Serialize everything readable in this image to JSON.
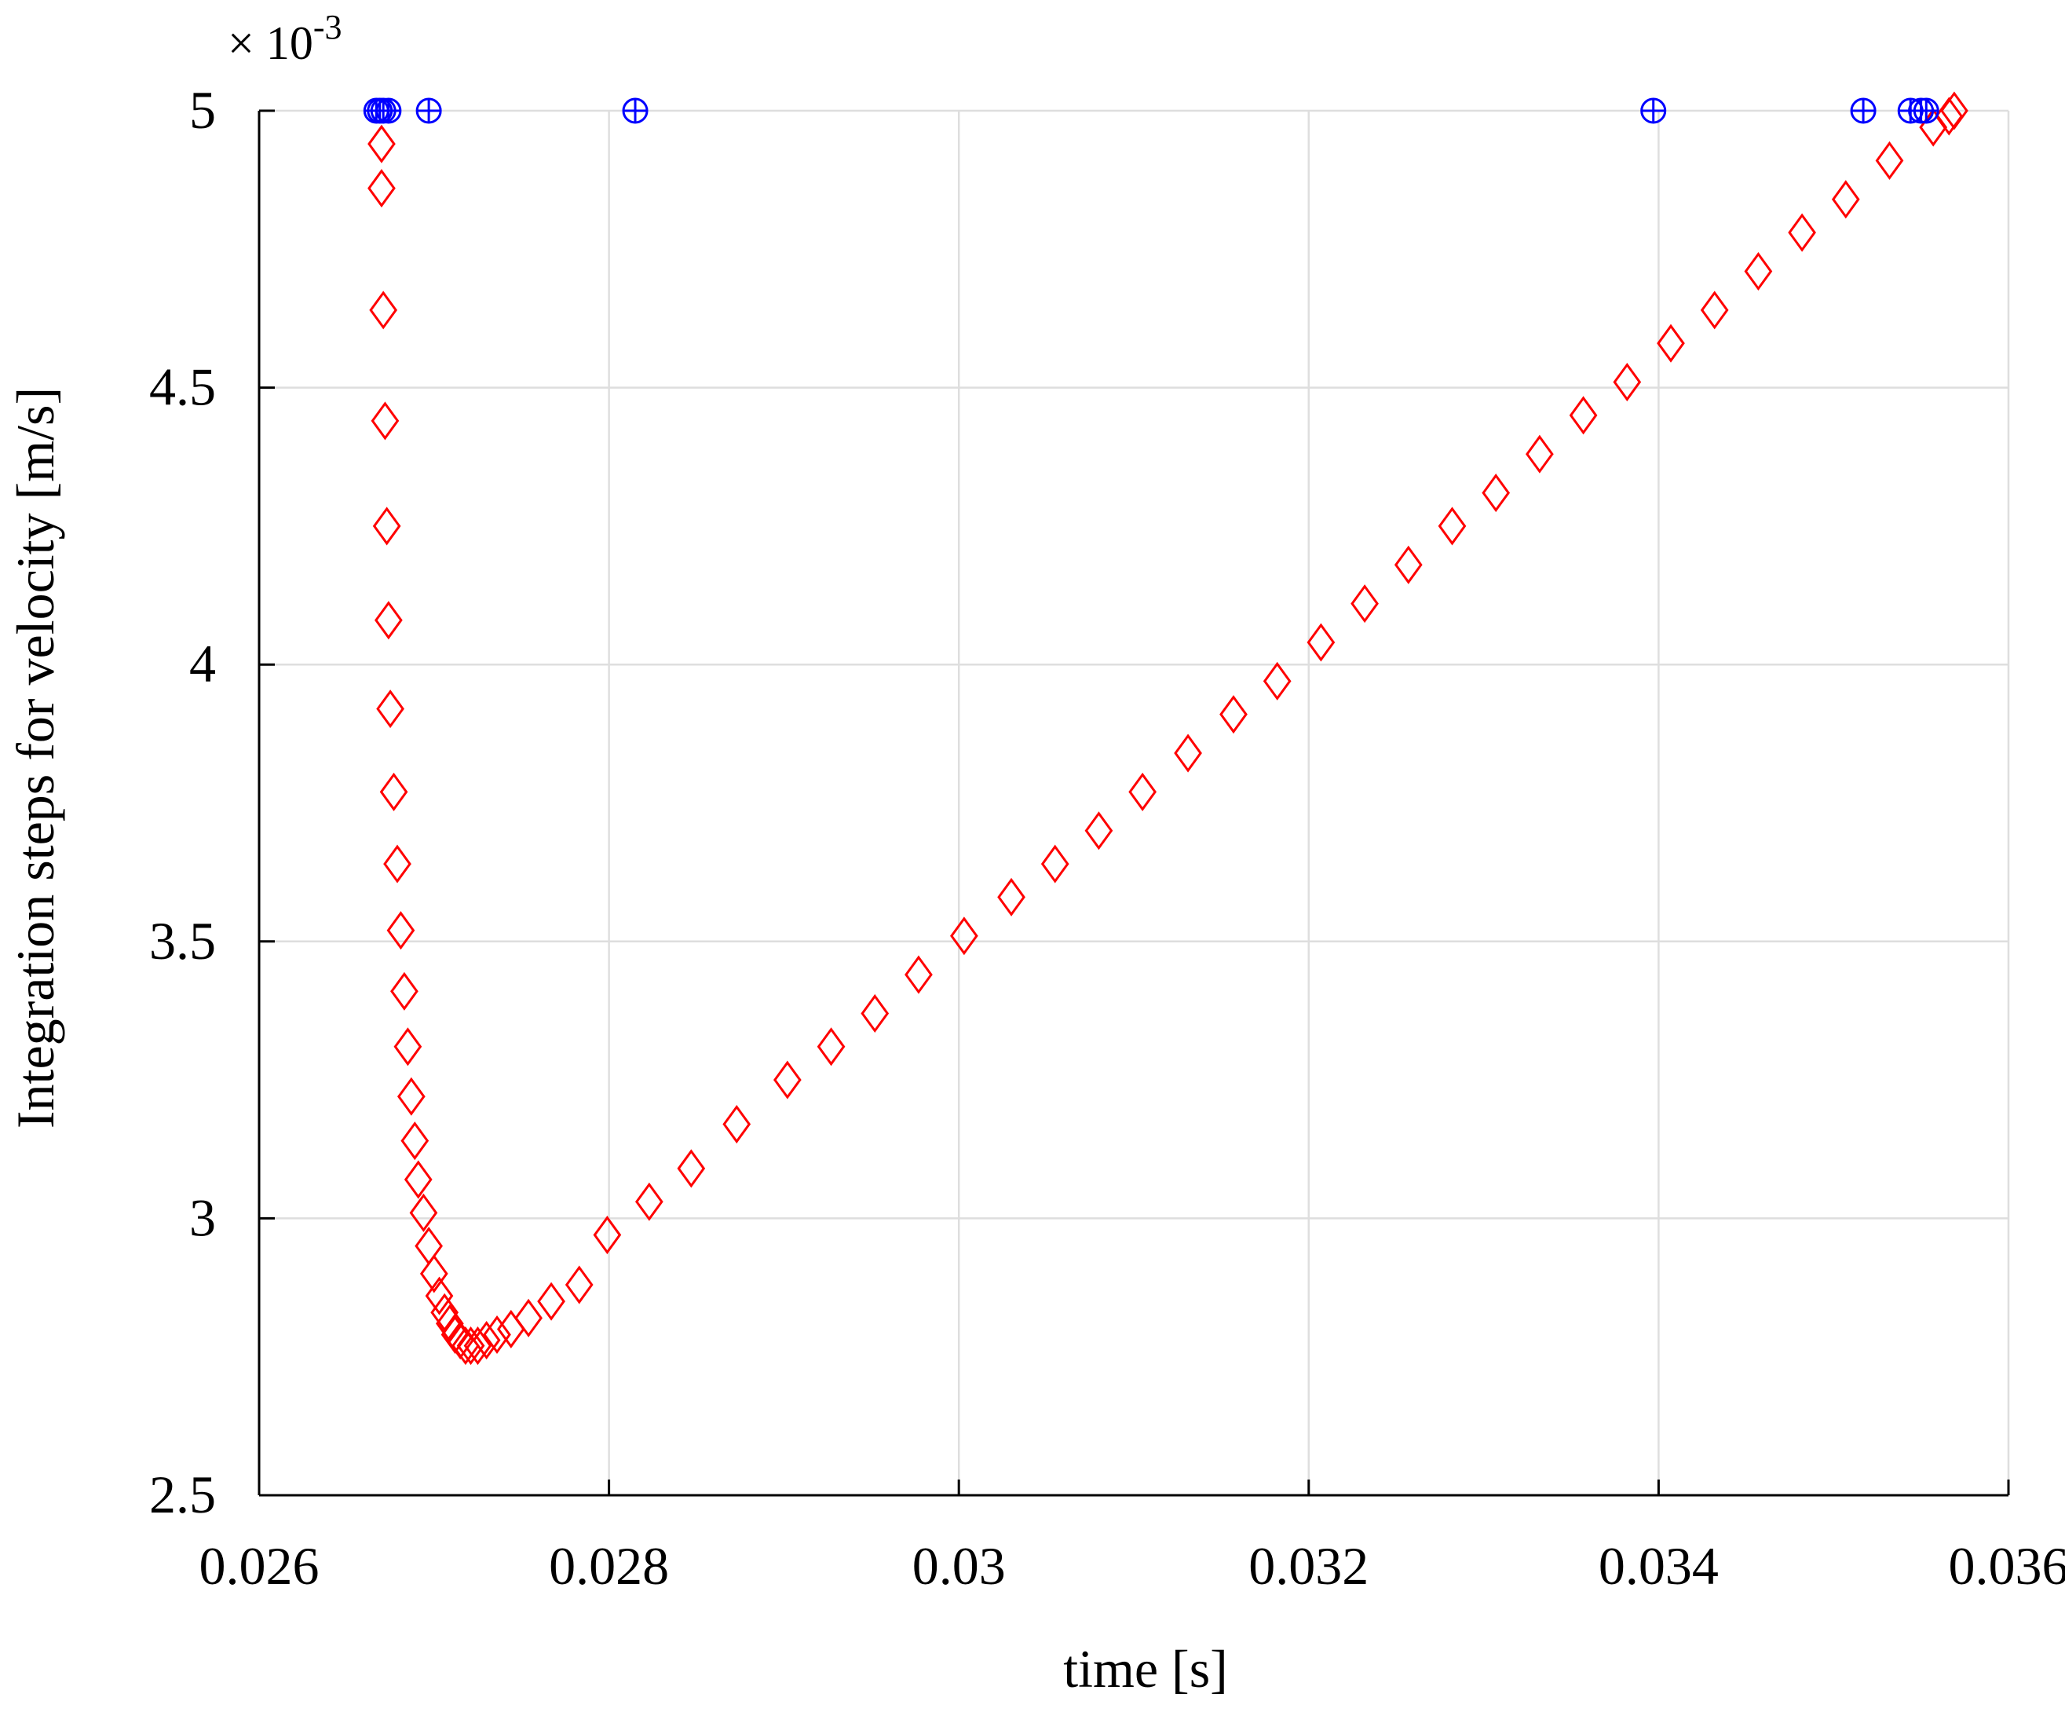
{
  "chart_data": {
    "type": "scatter",
    "title": "",
    "xlabel": "time [s]",
    "ylabel": "Integration steps for velocity [m/s]",
    "y_exponent": {
      "prefix": "× 10",
      "power": "-3"
    },
    "xlim": [
      0.026,
      0.036
    ],
    "ylim": [
      2.5,
      5
    ],
    "x_ticks": [
      0.026,
      0.028,
      0.03,
      0.032,
      0.034,
      0.036
    ],
    "x_tick_labels": [
      "0.026",
      "0.028",
      "0.03",
      "0.032",
      "0.034",
      "0.036"
    ],
    "y_ticks": [
      2.5,
      3,
      3.5,
      4,
      4.5,
      5
    ],
    "y_tick_labels": [
      "2.5",
      "3",
      "3.5",
      "4",
      "4.5",
      "5"
    ],
    "grid": true,
    "series": [
      {
        "marker": "diamond",
        "color": "#ff0000",
        "points": [
          [
            0.0267,
            4.94
          ],
          [
            0.0267,
            4.86
          ],
          [
            0.02671,
            4.64
          ],
          [
            0.02672,
            4.44
          ],
          [
            0.02673,
            4.25
          ],
          [
            0.02674,
            4.08
          ],
          [
            0.02675,
            3.92
          ],
          [
            0.02677,
            3.77
          ],
          [
            0.02679,
            3.64
          ],
          [
            0.02681,
            3.52
          ],
          [
            0.02683,
            3.41
          ],
          [
            0.02685,
            3.31
          ],
          [
            0.02687,
            3.22
          ],
          [
            0.02689,
            3.14
          ],
          [
            0.02691,
            3.07
          ],
          [
            0.02694,
            3.01
          ],
          [
            0.02697,
            2.95
          ],
          [
            0.027,
            2.9
          ],
          [
            0.02703,
            2.86
          ],
          [
            0.02706,
            2.83
          ],
          [
            0.02709,
            2.81
          ],
          [
            0.02712,
            2.79
          ],
          [
            0.02715,
            2.78
          ],
          [
            0.02718,
            2.77
          ],
          [
            0.02721,
            2.77
          ],
          [
            0.02725,
            2.77
          ],
          [
            0.0273,
            2.78
          ],
          [
            0.02736,
            2.79
          ],
          [
            0.02744,
            2.8
          ],
          [
            0.02754,
            2.82
          ],
          [
            0.02767,
            2.85
          ],
          [
            0.02783,
            2.88
          ],
          [
            0.02799,
            2.97
          ],
          [
            0.02823,
            3.03
          ],
          [
            0.02847,
            3.09
          ],
          [
            0.02873,
            3.17
          ],
          [
            0.02902,
            3.25
          ],
          [
            0.02927,
            3.31
          ],
          [
            0.02952,
            3.37
          ],
          [
            0.02977,
            3.44
          ],
          [
            0.03003,
            3.51
          ],
          [
            0.0303,
            3.58
          ],
          [
            0.03055,
            3.64
          ],
          [
            0.0308,
            3.7
          ],
          [
            0.03105,
            3.77
          ],
          [
            0.03131,
            3.84
          ],
          [
            0.03157,
            3.91
          ],
          [
            0.03182,
            3.97
          ],
          [
            0.03207,
            4.04
          ],
          [
            0.03232,
            4.11
          ],
          [
            0.03257,
            4.18
          ],
          [
            0.03282,
            4.25
          ],
          [
            0.03307,
            4.31
          ],
          [
            0.03332,
            4.38
          ],
          [
            0.03357,
            4.45
          ],
          [
            0.03382,
            4.51
          ],
          [
            0.03407,
            4.58
          ],
          [
            0.03432,
            4.64
          ],
          [
            0.03457,
            4.71
          ],
          [
            0.03482,
            4.78
          ],
          [
            0.03507,
            4.84
          ],
          [
            0.03532,
            4.91
          ],
          [
            0.03557,
            4.97
          ],
          [
            0.03566,
            4.99
          ],
          [
            0.03569,
            5.0
          ]
        ]
      },
      {
        "marker": "circle-plus",
        "color": "#0000ff",
        "points": [
          [
            0.02667,
            5
          ],
          [
            0.02669,
            5
          ],
          [
            0.02671,
            5
          ],
          [
            0.02674,
            5
          ],
          [
            0.02697,
            5
          ],
          [
            0.02815,
            5
          ],
          [
            0.03397,
            5
          ],
          [
            0.03517,
            5
          ],
          [
            0.03544,
            5
          ],
          [
            0.0355,
            5
          ],
          [
            0.03553,
            5
          ]
        ]
      }
    ]
  }
}
